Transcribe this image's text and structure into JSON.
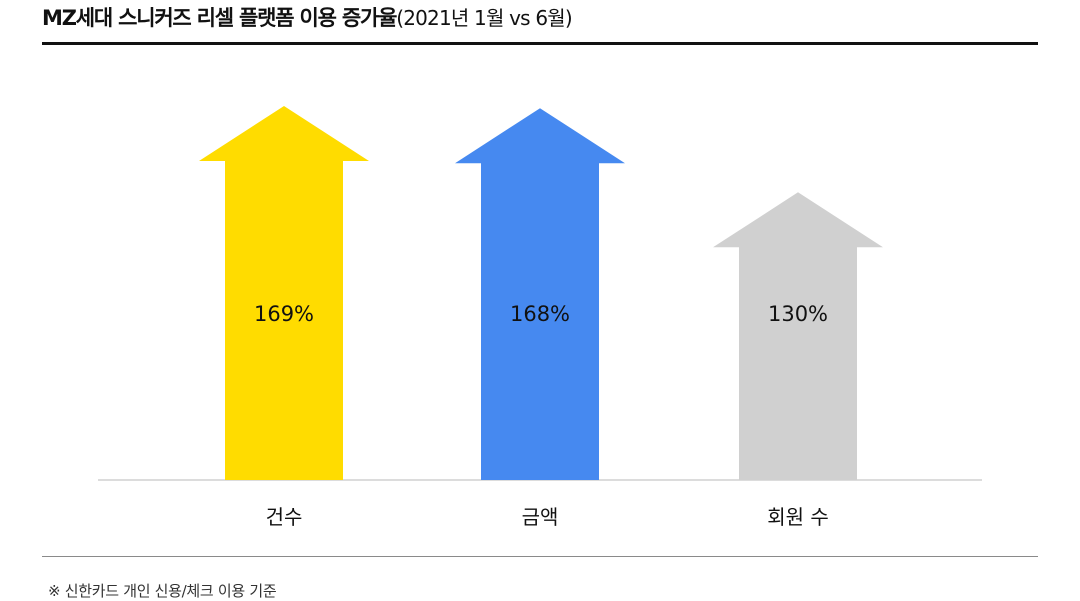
{
  "title": {
    "main": "MZ세대 스니커즈 리셀 플랫폼 이용 증가율",
    "sub": "(2021년 1월 vs 6월)"
  },
  "footnote": "※ 신한카드 개인 신용/체크 이용 기준",
  "chart_data": {
    "type": "bar",
    "title": "MZ세대 스니커즈 리셀 플랫폼 이용 증가율(2021년 1월 vs 6월)",
    "categories": [
      "건수",
      "금액",
      "회원 수"
    ],
    "values": [
      169,
      168,
      130
    ],
    "value_labels": [
      "169%",
      "168%",
      "130%"
    ],
    "colors": [
      "#FFDC00",
      "#4689F0",
      "#D0D0D0"
    ],
    "unit": "%",
    "xlabel": "",
    "ylabel": "",
    "grid": false,
    "legend": "none"
  }
}
